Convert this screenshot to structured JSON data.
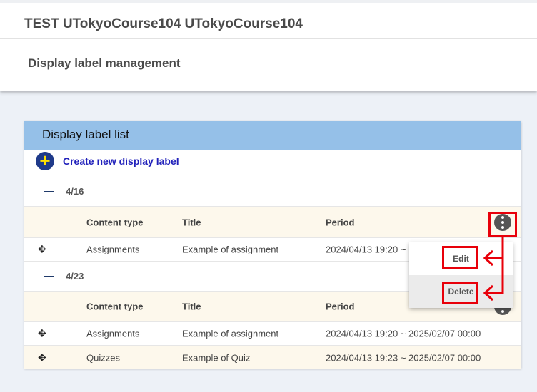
{
  "header": {
    "course_title": "TEST UTokyoCourse104 UTokyoCourse104",
    "page_title": "Display label management"
  },
  "panel": {
    "title": "Display label list",
    "create_label": "Create new display label",
    "columns": {
      "content_type": "Content type",
      "title": "Title",
      "period": "Period"
    },
    "groups": [
      {
        "label": "4/16",
        "rows": [
          {
            "content_type": "Assignments",
            "title": "Example of assignment",
            "period": "2024/04/13 19:20 ~"
          }
        ]
      },
      {
        "label": "4/23",
        "rows": [
          {
            "content_type": "Assignments",
            "title": "Example of assignment",
            "period": "2024/04/13 19:20 ~ 2025/02/07 00:00"
          },
          {
            "content_type": "Quizzes",
            "title": "Example of Quiz",
            "period": "2024/04/13 19:23 ~ 2025/02/07 00:00"
          }
        ]
      }
    ]
  },
  "menu": {
    "edit": "Edit",
    "delete": "Delete"
  },
  "colors": {
    "heading": "#95c0e8",
    "annotation": "#e8000a",
    "link": "#2222bb"
  }
}
